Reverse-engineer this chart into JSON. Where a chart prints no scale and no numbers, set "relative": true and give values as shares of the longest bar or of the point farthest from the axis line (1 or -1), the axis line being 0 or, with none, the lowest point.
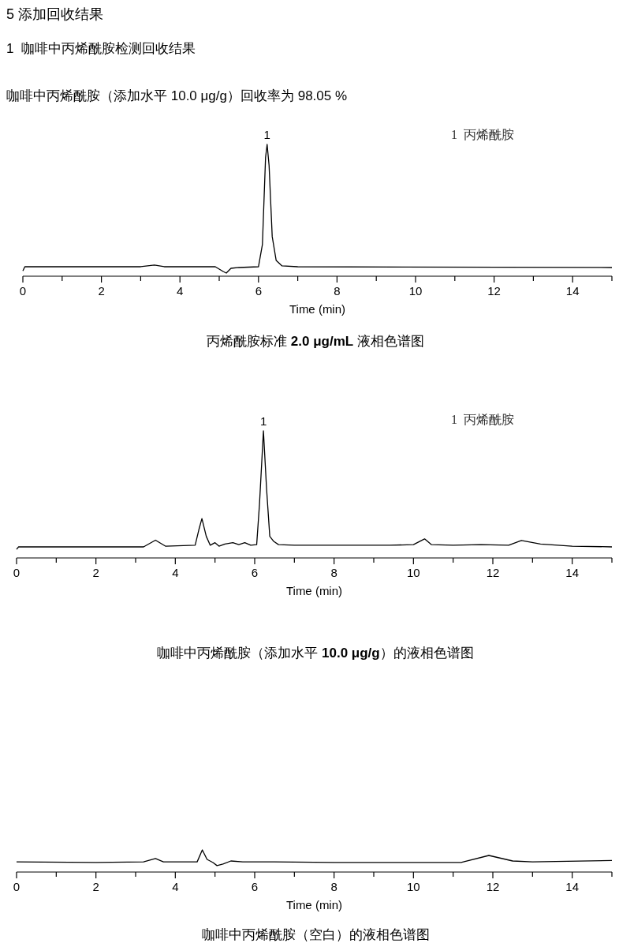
{
  "chart_data": [
    {
      "type": "line",
      "title": "5 添加回收结果",
      "subtitle": "1  咖啡中丙烯酰胺检测回收结果",
      "relative": true,
      "tick_labels": "x",
      "xlabel": "Time (min)",
      "xlim": [
        0,
        15
      ],
      "xticks": [
        0,
        {
          "value": 1,
          "label": null
        },
        2,
        {
          "value": 3,
          "label": null
        },
        4,
        {
          "value": 5,
          "label": null
        },
        6,
        {
          "value": 7,
          "label": null
        },
        8,
        {
          "value": 9,
          "label": null
        },
        10,
        {
          "value": 11,
          "label": null
        },
        12,
        {
          "value": 13,
          "label": null
        },
        14,
        {
          "value": 15,
          "label": null
        }
      ],
      "x": [
        0,
        0.05,
        3.0,
        3.35,
        3.6,
        4.9,
        5.1,
        5.18,
        5.3,
        5.5,
        6.0,
        6.1,
        6.18,
        6.22,
        6.27,
        6.35,
        6.45,
        6.6,
        7,
        15
      ],
      "series": [
        {
          "color": "#000000",
          "values": [
            0.04,
            0.072,
            0.072,
            0.084,
            0.072,
            0.072,
            0.036,
            0.024,
            0.06,
            0.066,
            0.072,
            0.24,
            0.9,
            1,
            0.84,
            0.3,
            0.12,
            0.078,
            0.072,
            0.066
          ]
        }
      ],
      "annotations": [
        "咖啡中丙烯酰胺（添加水平 10.0 μg/g）回收率为 98.05 %",
        {
          "text": "1",
          "x": 6.22,
          "y": 1
        },
        "1  丙烯酰胺",
        "丙烯酰胺标准 2.0 μg/mL 液相色谱图"
      ]
    },
    {
      "type": "line",
      "relative": true,
      "tick_labels": "x",
      "xlabel": "Time (min)",
      "xlim": [
        0,
        15
      ],
      "xticks": [
        0,
        {
          "value": 1,
          "label": null
        },
        2,
        {
          "value": 3,
          "label": null
        },
        4,
        {
          "value": 5,
          "label": null
        },
        6,
        {
          "value": 7,
          "label": null
        },
        8,
        {
          "value": 9,
          "label": null
        },
        10,
        {
          "value": 11,
          "label": null
        },
        12,
        {
          "value": 13,
          "label": null
        },
        14,
        {
          "value": 15,
          "label": null
        }
      ],
      "x": [
        0,
        0.05,
        3.2,
        3.5,
        3.75,
        4.5,
        4.6,
        4.67,
        4.78,
        4.88,
        5.0,
        5.1,
        5.25,
        5.45,
        5.6,
        5.75,
        5.9,
        6.05,
        6.12,
        6.22,
        6.3,
        6.38,
        6.48,
        6.6,
        7,
        8,
        9.4,
        10.0,
        10.28,
        10.45,
        11,
        11.7,
        12.4,
        12.72,
        13.2,
        14,
        15
      ],
      "series": [
        {
          "color": "#000000",
          "values": [
            0.068,
            0.087,
            0.087,
            0.14,
            0.093,
            0.1,
            0.23,
            0.31,
            0.17,
            0.1,
            0.12,
            0.093,
            0.11,
            0.12,
            0.105,
            0.12,
            0.1,
            0.105,
            0.42,
            1,
            0.54,
            0.17,
            0.13,
            0.105,
            0.1,
            0.1,
            0.1,
            0.105,
            0.15,
            0.105,
            0.1,
            0.105,
            0.1,
            0.137,
            0.11,
            0.093,
            0.087
          ]
        }
      ],
      "annotations": [
        {
          "text": "1",
          "x": 6.22,
          "y": 1
        },
        "1  丙烯酰胺",
        "咖啡中丙烯酰胺（添加水平 10.0 μg/g）的液相色谱图"
      ]
    },
    {
      "type": "line",
      "relative": true,
      "tick_labels": "x",
      "xlabel": "Time (min)",
      "xlim": [
        0,
        15
      ],
      "xticks": [
        0,
        {
          "value": 1,
          "label": null
        },
        2,
        {
          "value": 3,
          "label": null
        },
        4,
        {
          "value": 5,
          "label": null
        },
        6,
        {
          "value": 7,
          "label": null
        },
        8,
        {
          "value": 9,
          "label": null
        },
        10,
        {
          "value": 11,
          "label": null
        },
        12,
        {
          "value": 13,
          "label": null
        },
        14,
        {
          "value": 15,
          "label": null
        }
      ],
      "x": [
        0,
        2,
        3.2,
        3.5,
        3.7,
        4.55,
        4.68,
        4.8,
        4.95,
        5.05,
        5.2,
        5.4,
        5.7,
        6.5,
        8,
        11.2,
        11.9,
        12.5,
        13,
        15
      ],
      "series": [
        {
          "color": "#000000",
          "values": [
            0.46,
            0.43,
            0.46,
            0.61,
            0.46,
            0.46,
            1,
            0.57,
            0.43,
            0.29,
            0.36,
            0.5,
            0.46,
            0.46,
            0.43,
            0.43,
            0.75,
            0.5,
            0.46,
            0.52
          ]
        }
      ],
      "annotations": [
        "咖啡中丙烯酰胺（空白）的液相色谱图"
      ]
    }
  ]
}
